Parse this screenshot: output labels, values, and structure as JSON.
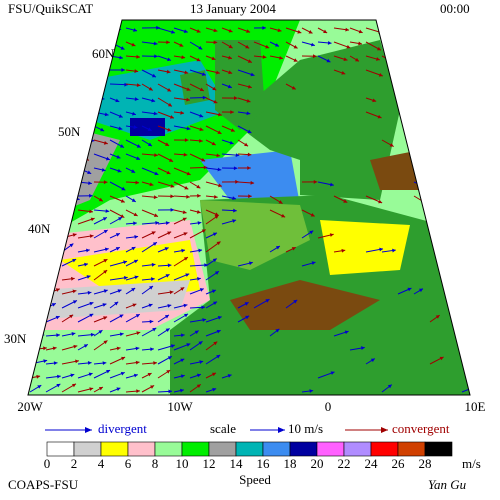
{
  "header": {
    "left": "FSU/QuikSCAT",
    "center": "13 January 2004",
    "right": "00:00"
  },
  "map": {
    "lat_labels": [
      "60N",
      "50N",
      "40N",
      "30N"
    ],
    "lon_labels": [
      "20W",
      "10W",
      "0",
      "10E"
    ]
  },
  "key": {
    "divergent": "divergent",
    "scale": "scale",
    "scale_value": "10 m/s",
    "convergent": "convergent"
  },
  "colorbar": {
    "ticks": [
      0,
      2,
      4,
      6,
      8,
      10,
      12,
      14,
      16,
      18,
      20,
      22,
      24,
      26,
      28
    ],
    "unit": "m/s",
    "label": "Speed",
    "colors": [
      "#ffffff",
      "#d0d0d0",
      "#ffff00",
      "#ffc0cb",
      "#98fb98",
      "#00ee00",
      "#a0a0a0",
      "#00b4b4",
      "#3c8cf0",
      "#0000a0",
      "#ff60ff",
      "#b08cff",
      "#ff0000",
      "#d04000",
      "#000000"
    ]
  },
  "footer": {
    "left": "COAPS-FSU",
    "right": "Yan Gu"
  }
}
